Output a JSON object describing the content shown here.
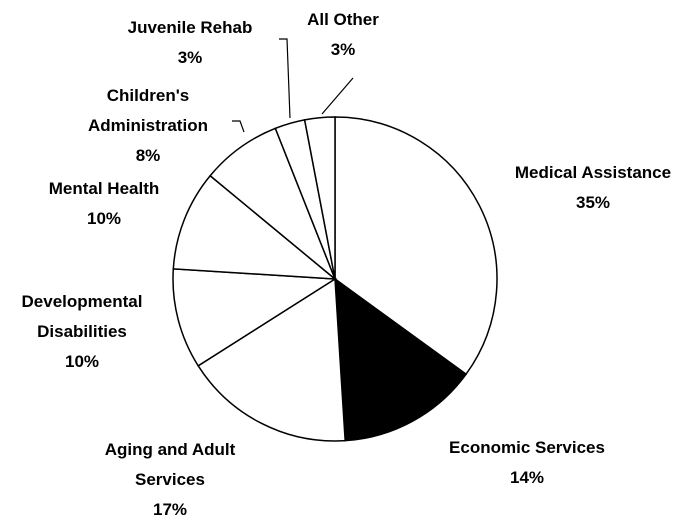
{
  "chart_data": {
    "type": "pie",
    "title": "",
    "colors": {
      "black": "#000000",
      "white": "#ffffff"
    },
    "slices": [
      {
        "label_lines": [
          "Medical Assistance"
        ],
        "value_label": "35%",
        "value": 35,
        "fill": "#ffffff"
      },
      {
        "label_lines": [
          "Economic Services"
        ],
        "value_label": "14%",
        "value": 14,
        "fill": "#000000"
      },
      {
        "label_lines": [
          "Aging and Adult",
          "Services"
        ],
        "value_label": "17%",
        "value": 17,
        "fill": "#ffffff"
      },
      {
        "label_lines": [
          "Developmental",
          "Disabilities"
        ],
        "value_label": "10%",
        "value": 10,
        "fill": "#ffffff"
      },
      {
        "label_lines": [
          "Mental Health"
        ],
        "value_label": "10%",
        "value": 10,
        "fill": "#ffffff"
      },
      {
        "label_lines": [
          "Children's",
          "Administration"
        ],
        "value_label": "8%",
        "value": 8,
        "fill": "#ffffff"
      },
      {
        "label_lines": [
          "Juvenile Rehab"
        ],
        "value_label": "3%",
        "value": 3,
        "fill": "#ffffff"
      },
      {
        "label_lines": [
          "All Other"
        ],
        "value_label": "3%",
        "value": 3,
        "fill": "#ffffff"
      }
    ]
  }
}
